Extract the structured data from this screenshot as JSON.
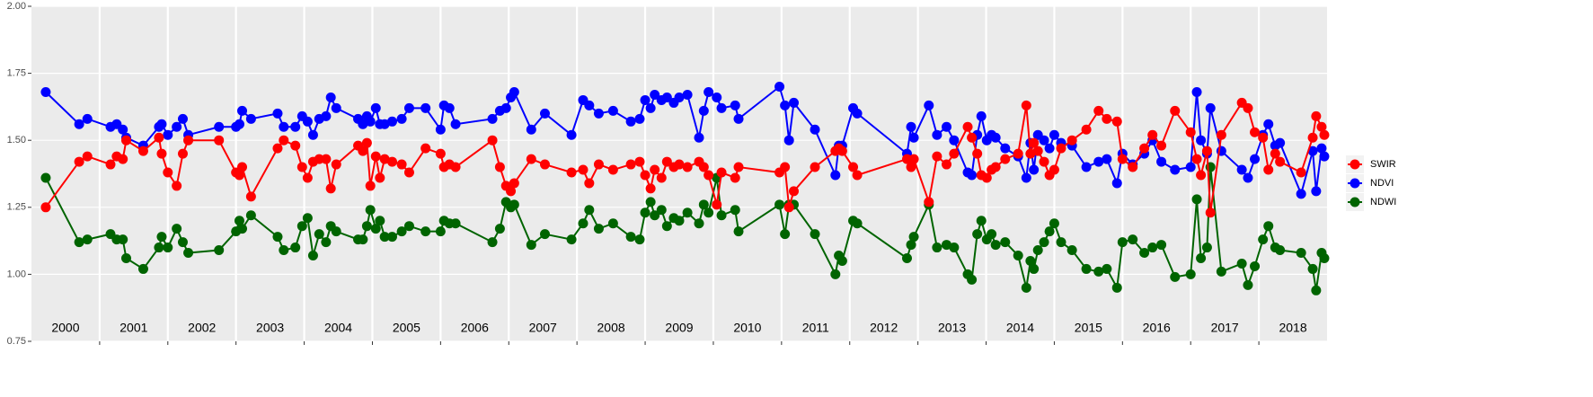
{
  "chart_data": {
    "type": "line",
    "x": [
      2000.21,
      2000.7,
      2000.82,
      2001.16,
      2001.25,
      2001.34,
      2001.39,
      2001.64,
      2001.87,
      2001.91,
      2002.0,
      2002.13,
      2002.22,
      2002.3,
      2002.75,
      2003.0,
      2003.05,
      2003.09,
      2003.22,
      2003.61,
      2003.7,
      2003.87,
      2003.97,
      2004.05,
      2004.13,
      2004.22,
      2004.32,
      2004.39,
      2004.47,
      2004.79,
      2004.86,
      2004.92,
      2004.97,
      2005.05,
      2005.11,
      2005.18,
      2005.29,
      2005.43,
      2005.54,
      2005.78,
      2006.0,
      2006.05,
      2006.13,
      2006.22,
      2006.76,
      2006.87,
      2006.96,
      2007.03,
      2007.08,
      2007.33,
      2007.53,
      2007.92,
      2008.09,
      2008.18,
      2008.32,
      2008.53,
      2008.79,
      2008.92,
      2009.0,
      2009.08,
      2009.14,
      2009.24,
      2009.32,
      2009.42,
      2009.5,
      2009.62,
      2009.79,
      2009.86,
      2009.93,
      2010.05,
      2010.12,
      2010.32,
      2010.37,
      2010.97,
      2011.05,
      2011.11,
      2011.18,
      2011.49,
      2011.79,
      2011.84,
      2011.89,
      2012.05,
      2012.11,
      2012.84,
      2012.9,
      2012.94,
      2013.16,
      2013.28,
      2013.42,
      2013.53,
      2013.73,
      2013.79,
      2013.87,
      2013.93,
      2014.01,
      2014.08,
      2014.14,
      2014.28,
      2014.47,
      2014.59,
      2014.65,
      2014.7,
      2014.76,
      2014.85,
      2014.93,
      2015.0,
      2015.1,
      2015.26,
      2015.47,
      2015.65,
      2015.77,
      2015.92,
      2016.0,
      2016.15,
      2016.32,
      2016.44,
      2016.57,
      2016.77,
      2017.0,
      2017.09,
      2017.15,
      2017.24,
      2017.29,
      2017.45,
      2017.75,
      2017.84,
      2017.94,
      2018.06,
      2018.14,
      2018.24,
      2018.31,
      2018.62,
      2018.79,
      2018.84,
      2018.92,
      2018.96
    ],
    "series": [
      {
        "name": "SWIR",
        "color": "#ff0000",
        "values": [
          1.25,
          1.42,
          1.44,
          1.41,
          1.44,
          1.43,
          1.5,
          1.46,
          1.51,
          1.45,
          1.38,
          1.33,
          1.45,
          1.5,
          1.5,
          1.38,
          1.37,
          1.4,
          1.29,
          1.47,
          1.5,
          1.48,
          1.4,
          1.36,
          1.42,
          1.43,
          1.43,
          1.32,
          1.41,
          1.48,
          1.46,
          1.49,
          1.33,
          1.44,
          1.36,
          1.43,
          1.42,
          1.41,
          1.38,
          1.47,
          1.45,
          1.4,
          1.41,
          1.4,
          1.5,
          1.4,
          1.33,
          1.31,
          1.34,
          1.43,
          1.41,
          1.38,
          1.39,
          1.34,
          1.41,
          1.39,
          1.41,
          1.42,
          1.37,
          1.32,
          1.39,
          1.36,
          1.42,
          1.4,
          1.41,
          1.4,
          1.42,
          1.4,
          1.37,
          1.26,
          1.38,
          1.36,
          1.4,
          1.38,
          1.4,
          1.25,
          1.31,
          1.4,
          1.46,
          1.47,
          1.46,
          1.4,
          1.37,
          1.43,
          1.4,
          1.43,
          1.27,
          1.44,
          1.41,
          1.45,
          1.55,
          1.51,
          1.45,
          1.37,
          1.36,
          1.39,
          1.4,
          1.43,
          1.45,
          1.63,
          1.45,
          1.49,
          1.46,
          1.42,
          1.37,
          1.39,
          1.47,
          1.5,
          1.54,
          1.61,
          1.58,
          1.57,
          1.43,
          1.4,
          1.47,
          1.52,
          1.48,
          1.61,
          1.53,
          1.43,
          1.37,
          1.46,
          1.23,
          1.52,
          1.64,
          1.62,
          1.53,
          1.51,
          1.39,
          1.45,
          1.42,
          1.38,
          1.51,
          1.59,
          1.55,
          1.52
        ]
      },
      {
        "name": "NDVI",
        "color": "#0000ff",
        "values": [
          1.68,
          1.56,
          1.58,
          1.55,
          1.56,
          1.54,
          1.51,
          1.48,
          1.55,
          1.56,
          1.52,
          1.55,
          1.58,
          1.52,
          1.55,
          1.55,
          1.56,
          1.61,
          1.58,
          1.6,
          1.55,
          1.55,
          1.59,
          1.57,
          1.52,
          1.58,
          1.59,
          1.66,
          1.62,
          1.58,
          1.56,
          1.59,
          1.57,
          1.62,
          1.56,
          1.56,
          1.57,
          1.58,
          1.62,
          1.62,
          1.54,
          1.63,
          1.62,
          1.56,
          1.58,
          1.61,
          1.62,
          1.66,
          1.68,
          1.54,
          1.6,
          1.52,
          1.65,
          1.63,
          1.6,
          1.61,
          1.57,
          1.58,
          1.65,
          1.62,
          1.67,
          1.65,
          1.66,
          1.64,
          1.66,
          1.67,
          1.51,
          1.61,
          1.68,
          1.66,
          1.62,
          1.63,
          1.58,
          1.7,
          1.63,
          1.5,
          1.64,
          1.54,
          1.37,
          1.48,
          1.48,
          1.62,
          1.6,
          1.45,
          1.55,
          1.51,
          1.63,
          1.52,
          1.55,
          1.5,
          1.38,
          1.37,
          1.52,
          1.59,
          1.5,
          1.52,
          1.51,
          1.47,
          1.44,
          1.36,
          1.49,
          1.39,
          1.52,
          1.5,
          1.47,
          1.52,
          1.49,
          1.48,
          1.4,
          1.42,
          1.43,
          1.34,
          1.45,
          1.41,
          1.45,
          1.5,
          1.42,
          1.39,
          1.4,
          1.68,
          1.5,
          1.45,
          1.62,
          1.46,
          1.39,
          1.36,
          1.43,
          1.52,
          1.56,
          1.48,
          1.49,
          1.3,
          1.46,
          1.31,
          1.47,
          1.44
        ]
      },
      {
        "name": "NDWI",
        "color": "#006400",
        "values": [
          1.36,
          1.12,
          1.13,
          1.15,
          1.13,
          1.13,
          1.06,
          1.02,
          1.1,
          1.14,
          1.1,
          1.17,
          1.12,
          1.08,
          1.09,
          1.16,
          1.2,
          1.17,
          1.22,
          1.14,
          1.09,
          1.1,
          1.18,
          1.21,
          1.07,
          1.15,
          1.12,
          1.18,
          1.16,
          1.13,
          1.13,
          1.18,
          1.24,
          1.17,
          1.2,
          1.14,
          1.14,
          1.16,
          1.18,
          1.16,
          1.16,
          1.2,
          1.19,
          1.19,
          1.12,
          1.17,
          1.27,
          1.25,
          1.26,
          1.11,
          1.15,
          1.13,
          1.19,
          1.24,
          1.17,
          1.19,
          1.14,
          1.13,
          1.23,
          1.27,
          1.22,
          1.24,
          1.18,
          1.21,
          1.2,
          1.23,
          1.19,
          1.26,
          1.23,
          1.36,
          1.22,
          1.24,
          1.16,
          1.26,
          1.15,
          1.26,
          1.26,
          1.15,
          1.0,
          1.07,
          1.05,
          1.2,
          1.19,
          1.06,
          1.11,
          1.14,
          1.26,
          1.1,
          1.11,
          1.1,
          1.0,
          0.98,
          1.15,
          1.2,
          1.13,
          1.15,
          1.11,
          1.12,
          1.07,
          0.95,
          1.05,
          1.02,
          1.09,
          1.12,
          1.16,
          1.19,
          1.12,
          1.09,
          1.02,
          1.01,
          1.02,
          0.95,
          1.12,
          1.13,
          1.08,
          1.1,
          1.11,
          0.99,
          1.0,
          1.28,
          1.06,
          1.1,
          1.4,
          1.01,
          1.04,
          0.96,
          1.03,
          1.13,
          1.18,
          1.1,
          1.09,
          1.08,
          1.02,
          0.94,
          1.08,
          1.06
        ]
      }
    ],
    "xlim": [
      2000,
      2019
    ],
    "xticks": [
      {
        "value": 2000.5,
        "label": "2000"
      },
      {
        "value": 2001.5,
        "label": "2001"
      },
      {
        "value": 2002.5,
        "label": "2002"
      },
      {
        "value": 2003.5,
        "label": "2003"
      },
      {
        "value": 2004.5,
        "label": "2004"
      },
      {
        "value": 2005.5,
        "label": "2005"
      },
      {
        "value": 2006.5,
        "label": "2006"
      },
      {
        "value": 2007.5,
        "label": "2007"
      },
      {
        "value": 2008.5,
        "label": "2008"
      },
      {
        "value": 2009.5,
        "label": "2009"
      },
      {
        "value": 2010.5,
        "label": "2010"
      },
      {
        "value": 2011.5,
        "label": "2011"
      },
      {
        "value": 2012.5,
        "label": "2012"
      },
      {
        "value": 2013.5,
        "label": "2013"
      },
      {
        "value": 2014.5,
        "label": "2014"
      },
      {
        "value": 2015.5,
        "label": "2015"
      },
      {
        "value": 2016.5,
        "label": "2016"
      },
      {
        "value": 2017.5,
        "label": "2017"
      },
      {
        "value": 2018.5,
        "label": "2018"
      }
    ],
    "xgrid": [
      2001,
      2002,
      2003,
      2004,
      2005,
      2006,
      2007,
      2008,
      2009,
      2010,
      2011,
      2012,
      2013,
      2014,
      2015,
      2016,
      2017,
      2018
    ],
    "ylim": [
      0.75,
      2.0
    ],
    "yticks": [
      {
        "value": 0.75,
        "label": "0.75"
      },
      {
        "value": 1.0,
        "label": "1.00"
      },
      {
        "value": 1.25,
        "label": "1.25"
      },
      {
        "value": 1.5,
        "label": "1.50"
      },
      {
        "value": 1.75,
        "label": "1.75"
      },
      {
        "value": 2.0,
        "label": "2.00"
      }
    ],
    "grid": true,
    "legend": "right"
  }
}
